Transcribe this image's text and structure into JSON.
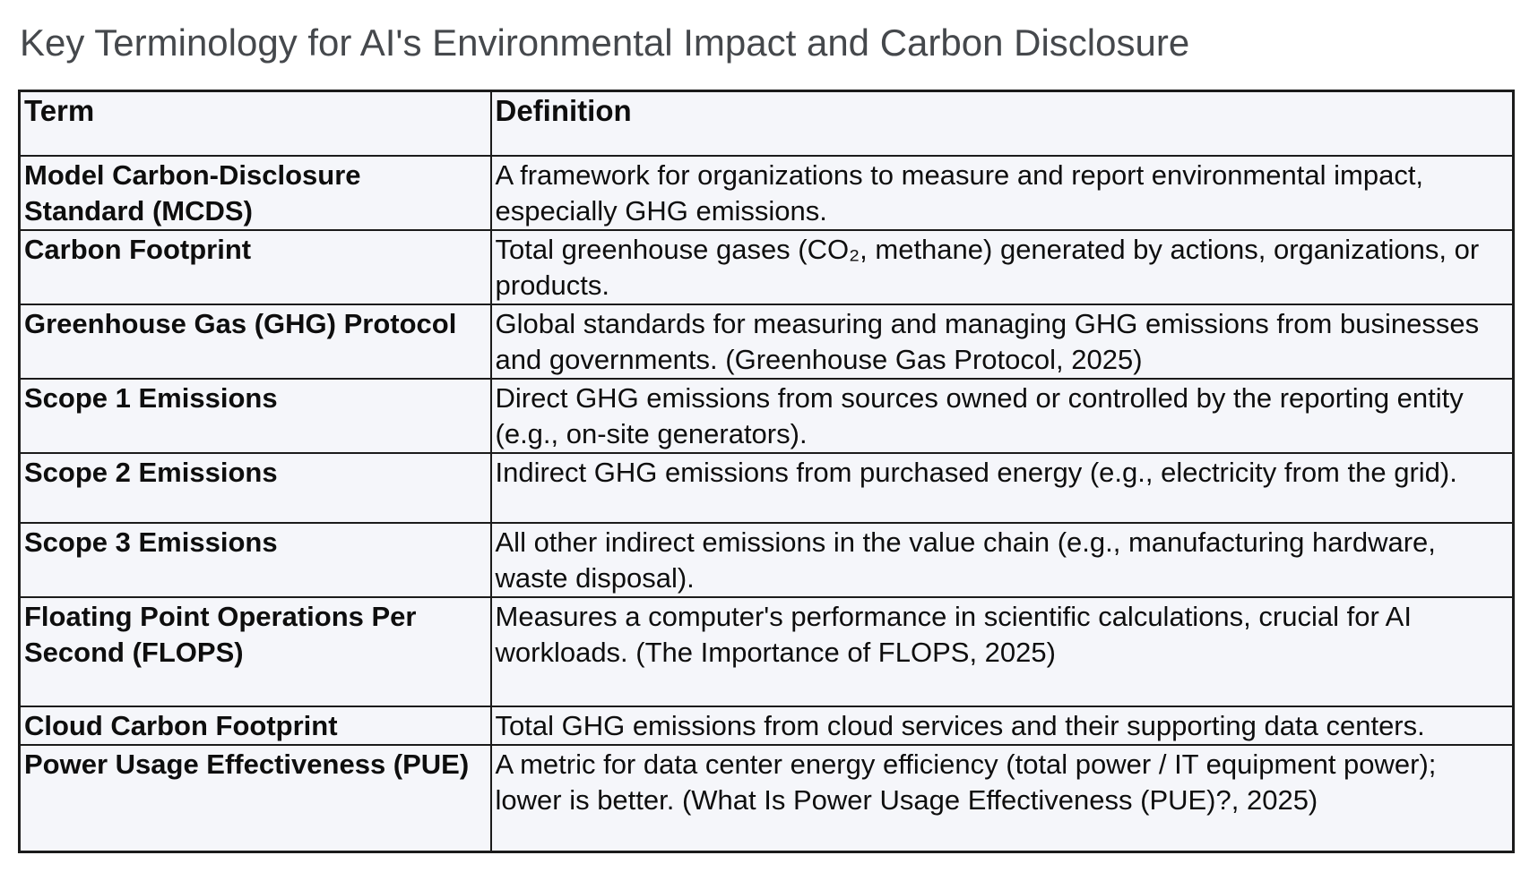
{
  "page": {
    "title": "Key Terminology for AI's Environmental Impact and Carbon Disclosure"
  },
  "colors": {
    "cell_background": "#f5f6fa",
    "border": "#1b1b1b",
    "title_text": "#45484c",
    "body_text": "#0e0e0e"
  },
  "table": {
    "columns": [
      "Term",
      "Definition"
    ],
    "rows": [
      {
        "term": "Model Carbon-Disclosure Standard (MCDS)",
        "definition": "A framework for organizations to measure and report environmental impact, especially GHG emissions."
      },
      {
        "term": "Carbon Footprint",
        "definition": "Total greenhouse gases (CO₂, methane) generated by actions, organizations, or products."
      },
      {
        "term": "Greenhouse Gas (GHG) Protocol",
        "definition": "Global standards for measuring and managing GHG emissions from businesses and governments. (Greenhouse Gas Protocol, 2025)"
      },
      {
        "term": "Scope 1 Emissions",
        "definition": "Direct GHG emissions from sources owned or controlled by the reporting entity (e.g., on-site generators)."
      },
      {
        "term": "Scope 2 Emissions",
        "definition": "Indirect GHG emissions from purchased energy (e.g., electricity from the grid)."
      },
      {
        "term": "Scope 3 Emissions",
        "definition": "All other indirect emissions in the value chain (e.g., manufacturing hardware, waste disposal)."
      },
      {
        "term": "Floating Point Operations Per Second (FLOPS)",
        "definition": "Measures a computer's performance in scientific calculations, crucial for AI workloads. (The Importance of FLOPS, 2025)"
      },
      {
        "term": "Cloud Carbon Footprint",
        "definition": "Total GHG emissions from cloud services and their supporting data centers."
      },
      {
        "term": "Power Usage Effectiveness (PUE)",
        "definition": "A metric for data center energy efficiency (total power / IT equipment power); lower is better. (What Is Power Usage Effectiveness (PUE)?, 2025)"
      }
    ]
  }
}
